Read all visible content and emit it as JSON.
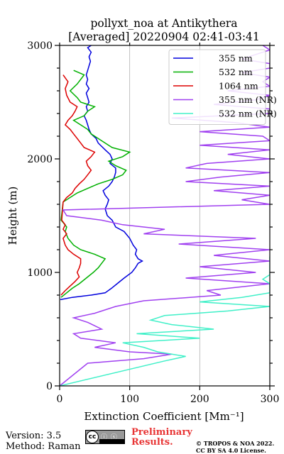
{
  "chart_data": {
    "type": "line",
    "title": "pollyxt_noa at Antikythera",
    "subtitle": "[Averaged] 20220904 02:41-03:41",
    "xlabel": "Extinction Coefficient [Mm⁻¹]",
    "ylabel": "Height (m)",
    "xlim": [
      0,
      300
    ],
    "ylim": [
      0,
      3000
    ],
    "xticks": [
      0,
      100,
      200,
      300
    ],
    "yticks": [
      0,
      1000,
      2000,
      3000
    ],
    "grid": "vertical",
    "legend_position": "top-right",
    "series": [
      {
        "name": "355 nm",
        "color": "#0000dd",
        "heights": [
          760,
          780,
          800,
          820,
          860,
          900,
          950,
          1000,
          1040,
          1080,
          1100,
          1120,
          1160,
          1200,
          1240,
          1300,
          1360,
          1400,
          1460,
          1500,
          1560,
          1600,
          1640,
          1680,
          1720,
          1760,
          1800,
          1840,
          1880,
          1920,
          1960,
          2000,
          2040,
          2080,
          2110,
          2140,
          2180,
          2220,
          2260,
          2300,
          2340,
          2380,
          2420,
          2460,
          2500,
          2540,
          2580,
          2620,
          2660,
          2700,
          2740,
          2780,
          2820,
          2860,
          2900,
          2940,
          2980,
          3000
        ],
        "values": [
          1,
          18,
          45,
          65,
          74,
          82,
          92,
          103,
          108,
          112,
          118,
          112,
          108,
          110,
          105,
          100,
          92,
          80,
          75,
          68,
          65,
          68,
          70,
          65,
          62,
          70,
          75,
          78,
          80,
          80,
          72,
          75,
          72,
          65,
          60,
          55,
          52,
          45,
          42,
          40,
          38,
          35,
          40,
          38,
          42,
          40,
          38,
          42,
          38,
          40,
          38,
          40,
          42,
          44,
          42,
          45,
          40,
          45
        ]
      },
      {
        "name": "532 nm",
        "color": "#00b000",
        "heights": [
          780,
          820,
          860,
          900,
          950,
          1000,
          1040,
          1080,
          1120,
          1160,
          1200,
          1240,
          1300,
          1360,
          1400,
          1440,
          1460,
          1620,
          1660,
          1700,
          1740,
          1780,
          1820,
          1860,
          1900,
          1940,
          1980,
          2020,
          2060,
          2100,
          2140,
          2180,
          2220,
          2260,
          2300,
          2340,
          2380,
          2420,
          2460,
          2500,
          2540,
          2600,
          2660,
          2700,
          2740,
          2780
        ],
        "values": [
          2,
          10,
          18,
          28,
          38,
          48,
          55,
          60,
          65,
          50,
          30,
          20,
          12,
          8,
          10,
          5,
          2,
          5,
          15,
          25,
          40,
          55,
          75,
          90,
          95,
          80,
          70,
          90,
          100,
          75,
          65,
          55,
          45,
          40,
          30,
          20,
          35,
          40,
          50,
          30,
          25,
          15,
          25,
          30,
          35,
          20
        ]
      },
      {
        "name": "1064 nm",
        "color": "#dd0000",
        "heights": [
          800,
          840,
          880,
          920,
          960,
          1000,
          1040,
          1080,
          1120,
          1160,
          1200,
          1240,
          1300,
          1340,
          1380,
          1420,
          1460,
          1620,
          1660,
          1700,
          1740,
          1780,
          1820,
          1860,
          1900,
          1940,
          1980,
          2020,
          2060,
          2100,
          2140,
          2180,
          2220,
          2260,
          2300,
          2340,
          2380,
          2420,
          2460,
          2500,
          2560,
          2620,
          2680,
          2740
        ],
        "values": [
          2,
          8,
          15,
          22,
          28,
          25,
          28,
          30,
          30,
          20,
          12,
          8,
          5,
          10,
          5,
          8,
          3,
          5,
          10,
          18,
          22,
          28,
          35,
          40,
          45,
          40,
          38,
          45,
          50,
          35,
          30,
          25,
          20,
          15,
          8,
          12,
          18,
          22,
          25,
          15,
          10,
          8,
          12,
          5
        ]
      },
      {
        "name": "355 nm (NR)",
        "color": "#a040f0",
        "heights": [
          0,
          200,
          240,
          280,
          300,
          340,
          380,
          420,
          460,
          500,
          560,
          600,
          640,
          700,
          750,
          800,
          840,
          900,
          950,
          1000,
          1050,
          1100,
          1150,
          1200,
          1250,
          1300,
          1340,
          1380,
          1420,
          1460,
          1500,
          1550,
          1600,
          1640,
          1680,
          1720,
          1760,
          1800,
          1840,
          1880,
          1920,
          1960,
          2000,
          2040,
          2080,
          2120,
          2160,
          2200,
          2240,
          2280,
          2320,
          2360,
          2400,
          2440,
          2480,
          2520,
          2560,
          2600,
          2640,
          2680,
          2720,
          2760,
          2800,
          2840,
          2880,
          2920,
          2960,
          3000
        ],
        "values": [
          0,
          40,
          120,
          160,
          100,
          50,
          80,
          30,
          20,
          60,
          40,
          20,
          50,
          80,
          120,
          230,
          210,
          300,
          180,
          280,
          200,
          300,
          220,
          300,
          170,
          280,
          120,
          150,
          90,
          60,
          10,
          5,
          300,
          260,
          300,
          220,
          300,
          180,
          230,
          300,
          180,
          210,
          300,
          240,
          300,
          200,
          300,
          290,
          200,
          300,
          250,
          160,
          300,
          300,
          220,
          280,
          300,
          240,
          300,
          290,
          300,
          260,
          300,
          300,
          260,
          280,
          300,
          290
        ]
      },
      {
        "name": "532 nm (NR)",
        "color": "#40f0c8",
        "heights": [
          0,
          220,
          260,
          300,
          340,
          380,
          420,
          460,
          500,
          540,
          580,
          620,
          660,
          700,
          740,
          780,
          820,
          860,
          900,
          940,
          980,
          1020,
          1060,
          1100,
          1140
        ],
        "values": [
          0,
          150,
          180,
          140,
          120,
          90,
          200,
          110,
          220,
          160,
          130,
          150,
          240,
          300,
          200,
          260,
          300,
          300,
          300,
          290,
          300,
          300,
          300,
          300,
          300
        ]
      }
    ]
  },
  "footer": {
    "version": "Version: 3.5",
    "method": "Method: Raman",
    "cc_badge": "cc",
    "cc_icons": "ⓘ ⓢ",
    "preliminary_line1": "Preliminary",
    "preliminary_line2": "Results.",
    "copyright_line1": "© TROPOS & NOA 2022.",
    "copyright_line2": "CC BY SA 4.0 License."
  }
}
